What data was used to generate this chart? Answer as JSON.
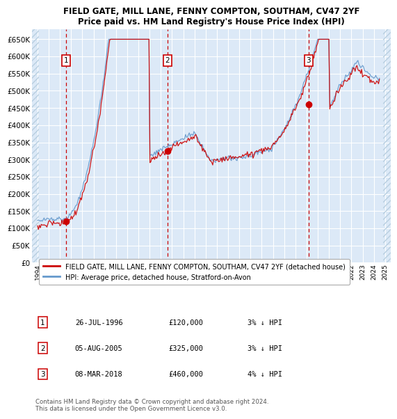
{
  "title1": "FIELD GATE, MILL LANE, FENNY COMPTON, SOUTHAM, CV47 2YF",
  "title2": "Price paid vs. HM Land Registry's House Price Index (HPI)",
  "ylim": [
    0,
    680000
  ],
  "yticks": [
    0,
    50000,
    100000,
    150000,
    200000,
    250000,
    300000,
    350000,
    400000,
    450000,
    500000,
    550000,
    600000,
    650000
  ],
  "xlim_start": 1993.5,
  "xlim_end": 2025.5,
  "bg_color": "#dce9f7",
  "hatch_color": "#b8cfe0",
  "grid_color": "#ffffff",
  "red_line_color": "#cc0000",
  "blue_line_color": "#6699cc",
  "vline_color": "#cc0000",
  "sale_points": [
    {
      "year": 1996.57,
      "price": 120000,
      "label": "1"
    },
    {
      "year": 2005.6,
      "price": 325000,
      "label": "2"
    },
    {
      "year": 2018.18,
      "price": 460000,
      "label": "3"
    }
  ],
  "legend_red_label": "FIELD GATE, MILL LANE, FENNY COMPTON, SOUTHAM, CV47 2YF (detached house)",
  "legend_blue_label": "HPI: Average price, detached house, Stratford-on-Avon",
  "table_rows": [
    {
      "num": "1",
      "date": "26-JUL-1996",
      "price": "£120,000",
      "pct": "3% ↓ HPI"
    },
    {
      "num": "2",
      "date": "05-AUG-2005",
      "price": "£325,000",
      "pct": "3% ↓ HPI"
    },
    {
      "num": "3",
      "date": "08-MAR-2018",
      "price": "£460,000",
      "pct": "4% ↓ HPI"
    }
  ],
  "footnote": "Contains HM Land Registry data © Crown copyright and database right 2024.\nThis data is licensed under the Open Government Licence v3.0."
}
